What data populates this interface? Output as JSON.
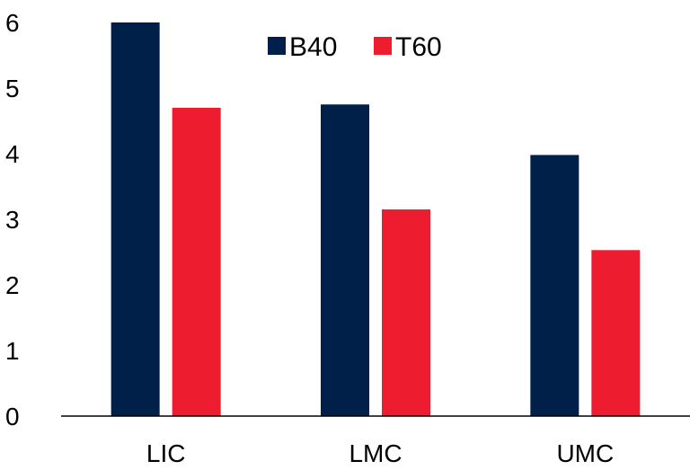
{
  "chart_data": {
    "type": "bar",
    "categories": [
      "LIC",
      "LMC",
      "UMC"
    ],
    "series": [
      {
        "name": "B40",
        "values": [
          6.0,
          4.75,
          3.98
        ],
        "color": "#00204a"
      },
      {
        "name": "T60",
        "values": [
          4.7,
          3.15,
          2.53
        ],
        "color": "#ed1c2e"
      }
    ],
    "y_ticks": [
      "0",
      "1",
      "2",
      "3",
      "4",
      "5",
      "6"
    ],
    "ylim": [
      0,
      6
    ],
    "grid": false,
    "legend_position": "top-center"
  }
}
